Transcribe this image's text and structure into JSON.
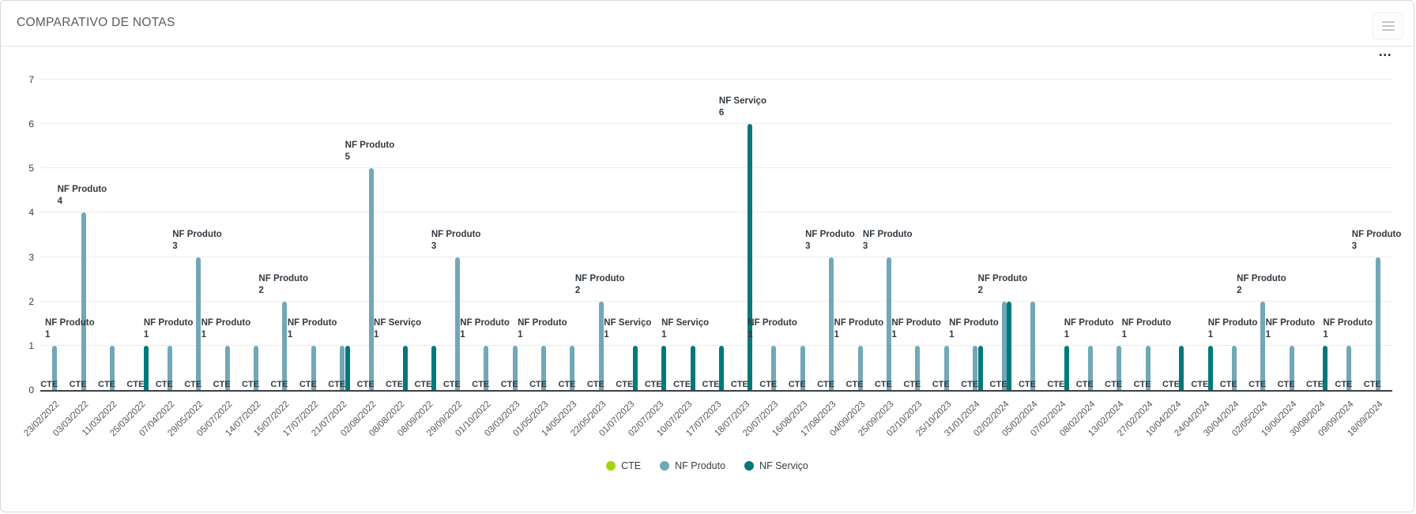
{
  "header": {
    "title": "COMPARATIVO DE NOTAS",
    "more_options_glyph": "•••"
  },
  "chart_data": {
    "type": "bar",
    "title": "COMPARATIVO DE NOTAS",
    "xlabel": "",
    "ylabel": "",
    "ylim": [
      0,
      7
    ],
    "y_ticks": [
      0,
      1,
      2,
      3,
      4,
      5,
      6,
      7
    ],
    "grid": true,
    "legend_position": "bottom",
    "categories": [
      "23/02/2022",
      "03/03/2022",
      "11/03/2022",
      "25/03/2022",
      "07/04/2022",
      "29/05/2022",
      "05/07/2022",
      "14/07/2022",
      "15/07/2022",
      "17/07/2022",
      "21/07/2022",
      "02/08/2022",
      "08/08/2022",
      "08/09/2022",
      "29/09/2022",
      "01/10/2022",
      "03/03/2023",
      "01/05/2023",
      "14/05/2023",
      "22/05/2023",
      "01/07/2023",
      "02/07/2023",
      "10/07/2023",
      "17/07/2023",
      "18/07/2023",
      "20/07/2023",
      "16/08/2023",
      "17/08/2023",
      "04/09/2023",
      "25/09/2023",
      "02/10/2023",
      "25/10/2023",
      "31/01/2024",
      "02/02/2024",
      "05/02/2024",
      "07/02/2024",
      "08/02/2024",
      "13/02/2024",
      "27/02/2024",
      "10/04/2024",
      "24/04/2024",
      "30/04/2024",
      "02/05/2024",
      "19/06/2024",
      "30/08/2024",
      "09/09/2024",
      "18/09/2024"
    ],
    "series": [
      {
        "name": "CTE",
        "color": "#a3d411",
        "values": [
          0,
          0,
          0,
          0,
          0,
          0,
          0,
          0,
          0,
          0,
          0,
          0,
          0,
          0,
          0,
          0,
          0,
          0,
          0,
          0,
          0,
          0,
          0,
          0,
          0,
          0,
          0,
          0,
          0,
          0,
          0,
          0,
          0,
          0,
          0,
          0,
          0,
          0,
          0,
          0,
          0,
          0,
          0,
          0,
          0,
          0,
          0
        ]
      },
      {
        "name": "NF Produto",
        "color": "#72a7b8",
        "values": [
          1,
          4,
          1,
          0,
          1,
          3,
          1,
          1,
          2,
          1,
          1,
          5,
          0,
          0,
          3,
          1,
          1,
          1,
          1,
          2,
          0,
          0,
          0,
          0,
          0,
          1,
          1,
          3,
          1,
          3,
          1,
          1,
          1,
          2,
          2,
          0,
          1,
          1,
          1,
          0,
          0,
          1,
          2,
          1,
          0,
          1,
          3
        ]
      },
      {
        "name": "NF Serviço",
        "color": "#00797a",
        "values": [
          0,
          0,
          0,
          1,
          0,
          0,
          0,
          0,
          0,
          0,
          1,
          0,
          1,
          1,
          0,
          0,
          0,
          0,
          0,
          0,
          1,
          1,
          1,
          1,
          6,
          0,
          0,
          0,
          0,
          0,
          0,
          0,
          1,
          2,
          0,
          1,
          0,
          0,
          0,
          1,
          1,
          0,
          0,
          0,
          1,
          0,
          0
        ]
      }
    ],
    "data_labels": {
      "note": "cte label text shown at every category near axis; value labels shown only at these 0-based category indices",
      "cte_label_text": "CTE",
      "nf_produto_label_indices": [
        0,
        1,
        4,
        5,
        6,
        8,
        9,
        11,
        14,
        15,
        17,
        19,
        25,
        27,
        28,
        29,
        30,
        32,
        33,
        36,
        38,
        41,
        42,
        43,
        45,
        46
      ],
      "nf_servico_label_indices": [
        12,
        20,
        22,
        24
      ]
    }
  }
}
